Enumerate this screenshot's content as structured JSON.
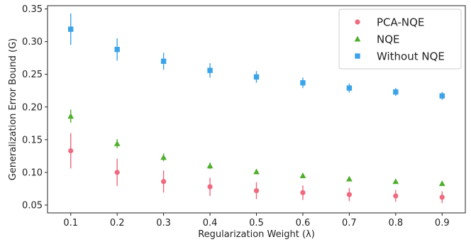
{
  "chart_data": {
    "type": "scatter",
    "title": "",
    "xlabel": "Regularization Weight (λ)",
    "ylabel": "Generalization Error Bound (G)",
    "xlim": [
      0.05,
      0.95
    ],
    "ylim": [
      0.038,
      0.355
    ],
    "x": [
      0.1,
      0.2,
      0.3,
      0.4,
      0.5,
      0.6,
      0.7,
      0.8,
      0.9
    ],
    "x_tick_labels": [
      "0.1",
      "0.2",
      "0.3",
      "0.4",
      "0.5",
      "0.6",
      "0.7",
      "0.8",
      "0.9"
    ],
    "y_ticks": [
      0.05,
      0.1,
      0.15,
      0.2,
      0.25,
      0.3,
      0.35
    ],
    "y_tick_labels": [
      "0.05",
      "0.10",
      "0.15",
      "0.20",
      "0.25",
      "0.30",
      "0.35"
    ],
    "grid": false,
    "legend_position": "top-right",
    "series": [
      {
        "name": "PCA-NQE",
        "marker": "circle",
        "color": "#f0697e",
        "values": [
          0.133,
          0.1,
          0.086,
          0.078,
          0.072,
          0.069,
          0.066,
          0.064,
          0.062
        ],
        "errors": [
          0.027,
          0.021,
          0.017,
          0.014,
          0.013,
          0.011,
          0.01,
          0.009,
          0.009
        ]
      },
      {
        "name": "NQE",
        "marker": "triangle",
        "color": "#4fae2e",
        "values": [
          0.186,
          0.144,
          0.123,
          0.11,
          0.101,
          0.095,
          0.09,
          0.086,
          0.083
        ],
        "errors": [
          0.01,
          0.007,
          0.006,
          0.005,
          0.004,
          0.004,
          0.003,
          0.003,
          0.003
        ]
      },
      {
        "name": "Without NQE",
        "marker": "square",
        "color": "#3ba3e8",
        "values": [
          0.319,
          0.288,
          0.27,
          0.256,
          0.246,
          0.237,
          0.229,
          0.223,
          0.217
        ],
        "errors": [
          0.024,
          0.017,
          0.013,
          0.011,
          0.009,
          0.008,
          0.007,
          0.006,
          0.006
        ]
      }
    ]
  }
}
